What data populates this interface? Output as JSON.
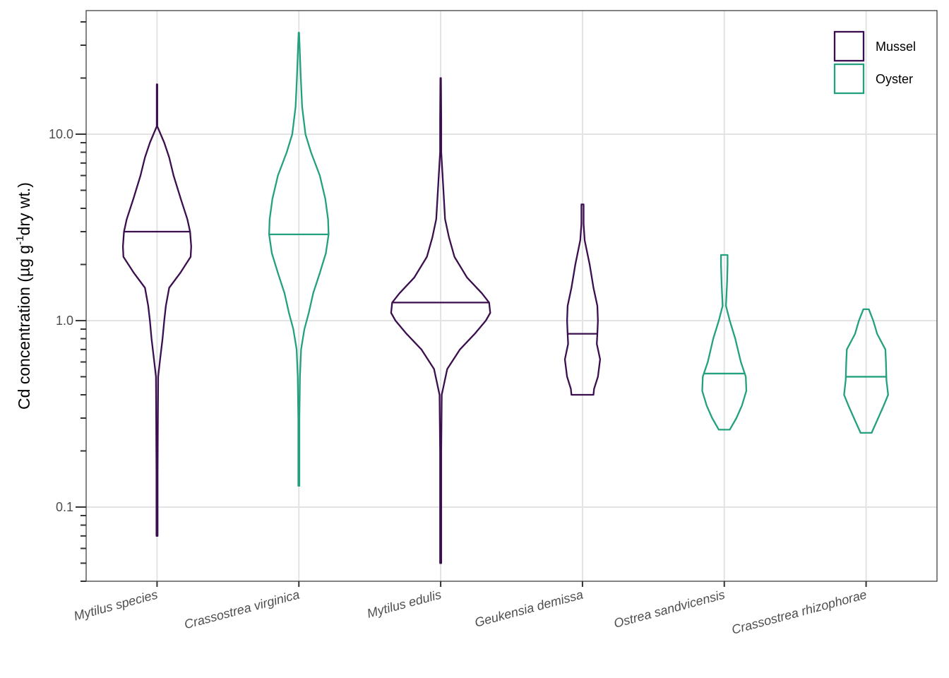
{
  "chart_data": {
    "type": "violin",
    "y_scale": "log10",
    "ylim": [
      0.04,
      46
    ],
    "ylabel": {
      "prefix": "Cd concentration (µg g",
      "superscript": "-1",
      "suffix": "dry wt.)"
    },
    "xlabel": "",
    "y_ticks": [
      {
        "value": 0.1,
        "label": "0.1"
      },
      {
        "value": 1.0,
        "label": "1.0"
      },
      {
        "value": 10.0,
        "label": "10.0"
      }
    ],
    "grid": true,
    "legend_position": "top-right",
    "groups": [
      {
        "name": "Mussel",
        "color": "#3b0f4f"
      },
      {
        "name": "Oyster",
        "color": "#23a17e"
      }
    ],
    "categories": [
      "Mytilus species",
      "Crassostrea virginica",
      "Mytilus edulis",
      "Geukensia demissa",
      "Ostrea sandvicensis",
      "Crassostrea rhizophorae"
    ],
    "series": [
      {
        "category": "Mytilus species",
        "group": "Mussel",
        "median": 3.0,
        "profile": [
          [
            0.07,
            0.01
          ],
          [
            0.15,
            0.01
          ],
          [
            0.3,
            0.015
          ],
          [
            0.5,
            0.02
          ],
          [
            0.6,
            0.05
          ],
          [
            0.8,
            0.1
          ],
          [
            1.0,
            0.13
          ],
          [
            1.2,
            0.16
          ],
          [
            1.5,
            0.22
          ],
          [
            1.8,
            0.42
          ],
          [
            2.2,
            0.61
          ],
          [
            2.5,
            0.62
          ],
          [
            3.0,
            0.6
          ],
          [
            3.5,
            0.55
          ],
          [
            4.5,
            0.43
          ],
          [
            6.0,
            0.3
          ],
          [
            7.5,
            0.22
          ],
          [
            9.0,
            0.13
          ],
          [
            11.0,
            0.0
          ],
          [
            13.0,
            -0.05
          ],
          [
            15.0,
            0.0
          ],
          [
            18.5,
            0.0
          ]
        ]
      },
      {
        "category": "Crassostrea virginica",
        "group": "Oyster",
        "median": 2.9,
        "profile": [
          [
            0.13,
            0.01
          ],
          [
            0.3,
            0.01
          ],
          [
            0.5,
            0.02
          ],
          [
            0.7,
            0.04
          ],
          [
            0.9,
            0.1
          ],
          [
            1.1,
            0.18
          ],
          [
            1.4,
            0.26
          ],
          [
            1.8,
            0.38
          ],
          [
            2.3,
            0.49
          ],
          [
            2.9,
            0.54
          ],
          [
            3.5,
            0.53
          ],
          [
            4.5,
            0.48
          ],
          [
            6.0,
            0.38
          ],
          [
            8.0,
            0.22
          ],
          [
            10.0,
            0.12
          ],
          [
            14.0,
            0.06
          ],
          [
            20.0,
            0.035
          ],
          [
            35.0,
            0.005
          ]
        ]
      },
      {
        "category": "Mytilus edulis",
        "group": "Mussel",
        "median": 1.25,
        "profile": [
          [
            0.05,
            0.01
          ],
          [
            0.2,
            0.01
          ],
          [
            0.4,
            0.02
          ],
          [
            0.55,
            0.12
          ],
          [
            0.7,
            0.35
          ],
          [
            0.85,
            0.62
          ],
          [
            1.0,
            0.82
          ],
          [
            1.1,
            0.9
          ],
          [
            1.25,
            0.88
          ],
          [
            1.4,
            0.75
          ],
          [
            1.7,
            0.48
          ],
          [
            2.2,
            0.25
          ],
          [
            2.8,
            0.15
          ],
          [
            3.5,
            0.08
          ],
          [
            5.0,
            0.05
          ],
          [
            8.0,
            0.01
          ],
          [
            12.0,
            0.01
          ],
          [
            20.0,
            0.005
          ]
        ]
      },
      {
        "category": "Geukensia demissa",
        "group": "Mussel",
        "median": 0.85,
        "profile": [
          [
            0.4,
            0.2
          ],
          [
            0.43,
            0.21
          ],
          [
            0.5,
            0.28
          ],
          [
            0.62,
            0.32
          ],
          [
            0.75,
            0.26
          ],
          [
            0.85,
            0.27
          ],
          [
            1.0,
            0.28
          ],
          [
            1.2,
            0.27
          ],
          [
            1.5,
            0.2
          ],
          [
            2.0,
            0.13
          ],
          [
            2.7,
            0.04
          ],
          [
            3.3,
            0.02
          ],
          [
            4.2,
            0.02
          ]
        ]
      },
      {
        "category": "Ostrea sandvicensis",
        "group": "Oyster",
        "median": 0.52,
        "profile": [
          [
            0.26,
            0.1
          ],
          [
            0.3,
            0.22
          ],
          [
            0.35,
            0.32
          ],
          [
            0.42,
            0.4
          ],
          [
            0.5,
            0.39
          ],
          [
            0.6,
            0.3
          ],
          [
            0.8,
            0.2
          ],
          [
            1.0,
            0.1
          ],
          [
            1.2,
            0.03
          ],
          [
            1.6,
            0.05
          ],
          [
            2.0,
            0.06
          ],
          [
            2.25,
            0.06
          ]
        ]
      },
      {
        "category": "Crassostrea rhizophorae",
        "group": "Oyster",
        "median": 0.5,
        "profile": [
          [
            0.25,
            0.1
          ],
          [
            0.3,
            0.22
          ],
          [
            0.35,
            0.32
          ],
          [
            0.4,
            0.4
          ],
          [
            0.48,
            0.37
          ],
          [
            0.6,
            0.36
          ],
          [
            0.7,
            0.35
          ],
          [
            0.85,
            0.2
          ],
          [
            1.0,
            0.13
          ],
          [
            1.15,
            0.05
          ]
        ]
      }
    ]
  }
}
